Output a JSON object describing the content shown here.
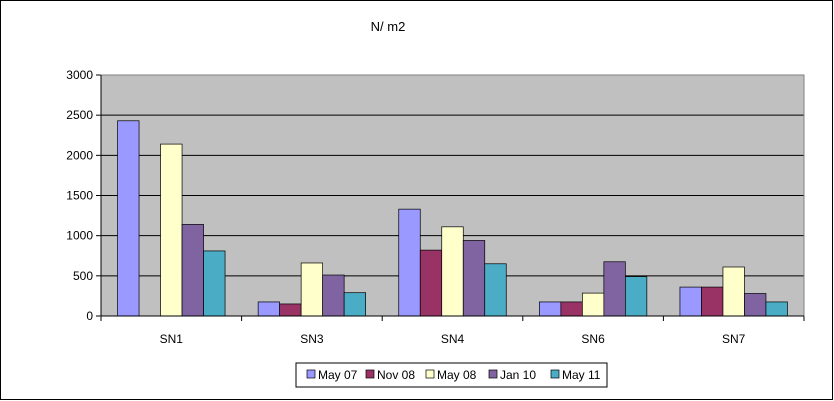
{
  "chart_data": {
    "type": "bar",
    "title": "N/ m2",
    "xlabel": "",
    "ylabel": "",
    "ylim": [
      0,
      3000
    ],
    "yticks": [
      "0",
      "500",
      "1000",
      "1500",
      "2000",
      "2500",
      "3000"
    ],
    "grid": true,
    "legend_position": "bottom",
    "categories": [
      "SN1",
      "SN3",
      "SN4",
      "SN6",
      "SN7"
    ],
    "series": [
      {
        "name": "May 07",
        "color": "#9999ff",
        "values": [
          2430,
          175,
          1330,
          175,
          360
        ]
      },
      {
        "name": "Nov 08",
        "color": "#993366",
        "values": [
          0,
          150,
          820,
          175,
          360
        ]
      },
      {
        "name": "May 08",
        "color": "#ffffcc",
        "values": [
          2140,
          660,
          1110,
          285,
          610
        ]
      },
      {
        "name": "Jan 10",
        "color": "#8064a2",
        "values": [
          1140,
          510,
          940,
          675,
          280
        ]
      },
      {
        "name": "May 11",
        "color": "#4bacc6",
        "values": [
          810,
          290,
          650,
          490,
          175
        ]
      }
    ],
    "colors": {
      "plot_background": "#c0c0c0",
      "gridline": "#000000",
      "frame": "#000000"
    }
  }
}
